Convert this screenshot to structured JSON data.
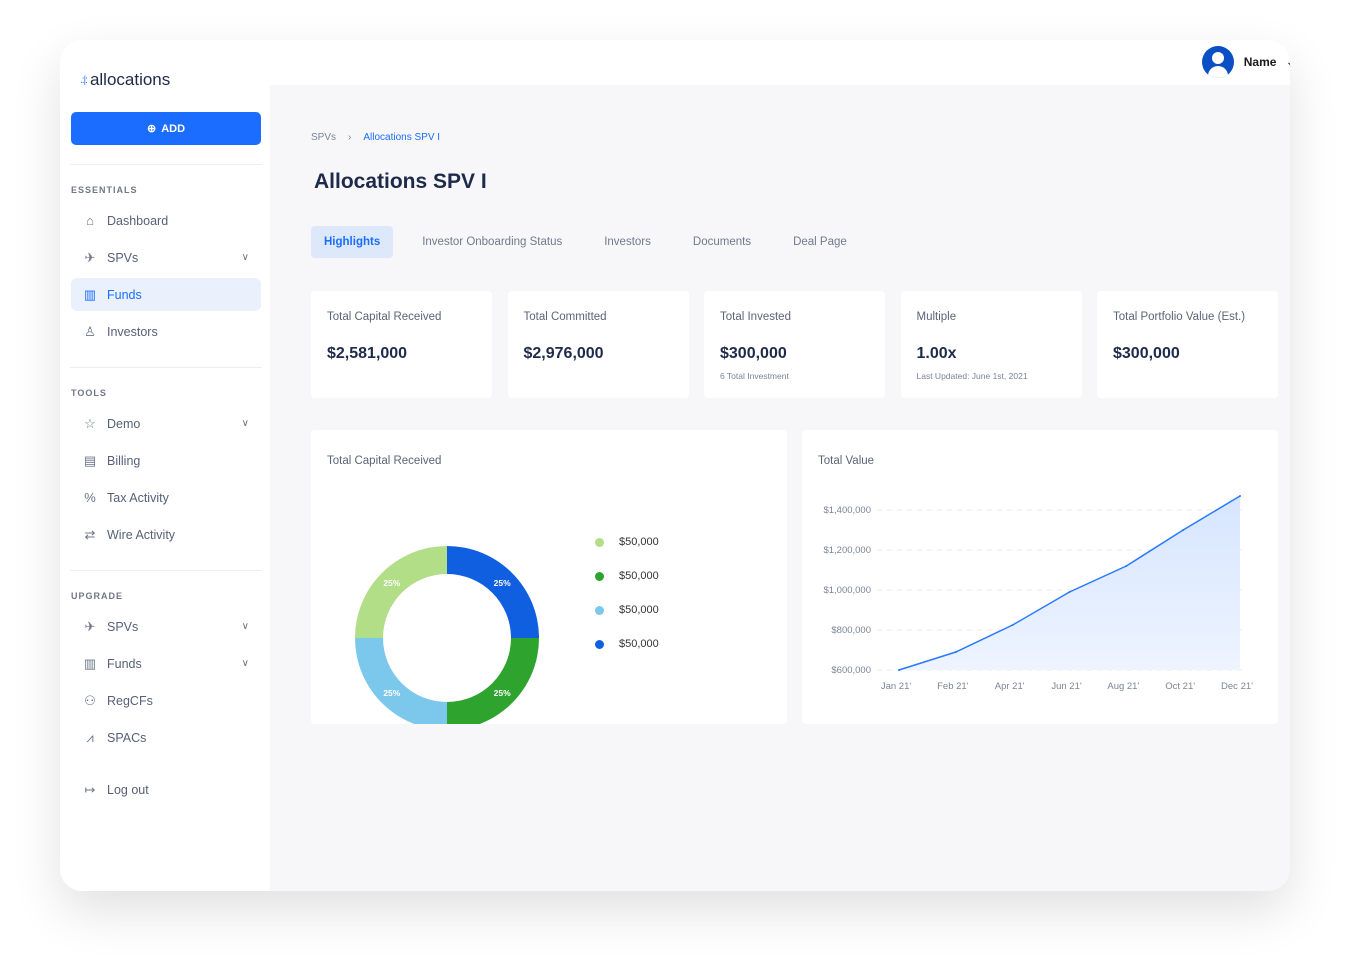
{
  "brand": {
    "name": "allocations"
  },
  "sidebar": {
    "add_label": "ADD",
    "sections": [
      {
        "title": "ESSENTIALS"
      },
      {
        "title": "TOOLS"
      },
      {
        "title": "UPGRADE"
      }
    ],
    "essentials": [
      {
        "label": "Dashboard",
        "icon": "home-icon"
      },
      {
        "label": "SPVs",
        "icon": "rocket-icon",
        "expandable": true
      },
      {
        "label": "Funds",
        "icon": "building-icon",
        "active": true
      },
      {
        "label": "Investors",
        "icon": "user-icon"
      }
    ],
    "tools": [
      {
        "label": "Demo",
        "icon": "star-icon",
        "expandable": true
      },
      {
        "label": "Billing",
        "icon": "receipt-icon"
      },
      {
        "label": "Tax Activity",
        "icon": "percent-icon"
      },
      {
        "label": "Wire Activity",
        "icon": "transfer-icon"
      }
    ],
    "upgrade": [
      {
        "label": "SPVs",
        "icon": "rocket-icon",
        "expandable": true
      },
      {
        "label": "Funds",
        "icon": "building-icon",
        "expandable": true
      },
      {
        "label": "RegCFs",
        "icon": "people-icon"
      },
      {
        "label": "SPACs",
        "icon": "chart-icon"
      }
    ],
    "logout": "Log out"
  },
  "header": {
    "user_name": "Name"
  },
  "breadcrumb": [
    "SPVs",
    "Allocations SPV I"
  ],
  "page_title": "Allocations SPV I",
  "tabs": [
    {
      "label": "Highlights",
      "active": true
    },
    {
      "label": "Investor Onboarding Status"
    },
    {
      "label": "Investors"
    },
    {
      "label": "Documents"
    },
    {
      "label": "Deal Page"
    }
  ],
  "stats": [
    {
      "label": "Total Capital Received",
      "value": "$2,581,000",
      "sub": ""
    },
    {
      "label": "Total Committed",
      "value": "$2,976,000",
      "sub": ""
    },
    {
      "label": "Total Invested",
      "value": "$300,000",
      "sub": "6 Total Investment"
    },
    {
      "label": "Multiple",
      "value": "1.00x",
      "sub": "Last Updated: June 1st, 2021"
    },
    {
      "label": "Total Portfolio Value (Est.)",
      "value": "$300,000",
      "sub": ""
    }
  ],
  "chart_data": [
    {
      "type": "pie",
      "title": "Total Capital Received",
      "donut": true,
      "slices": [
        {
          "value": 25,
          "label": "25%",
          "legend": "$50,000",
          "color": "#0f5fe0"
        },
        {
          "value": 25,
          "label": "25%",
          "legend": "$50,000",
          "color": "#2ea32e"
        },
        {
          "value": 25,
          "label": "25%",
          "legend": "$50,000",
          "color": "#7cc8ec"
        },
        {
          "value": 25,
          "label": "25%",
          "legend": "$50,000",
          "color": "#b2de87"
        }
      ],
      "legend_order": [
        3,
        1,
        2,
        0
      ],
      "legend_placement": "right"
    },
    {
      "type": "area",
      "title": "Total Value",
      "x": [
        "Jan 21'",
        "Feb 21'",
        "Apr 21'",
        "Jun 21'",
        "Aug 21'",
        "Oct 21'",
        "Dec 21'"
      ],
      "values": [
        600000,
        690000,
        825000,
        990000,
        1120000,
        1300000,
        1470000
      ],
      "yticks": [
        "$600,000",
        "$800,000",
        "$1,000,000",
        "$1,200,000",
        "$1,400,000"
      ],
      "ylim": [
        600000,
        1400000
      ],
      "grid": true,
      "color": "#2979ff"
    }
  ]
}
